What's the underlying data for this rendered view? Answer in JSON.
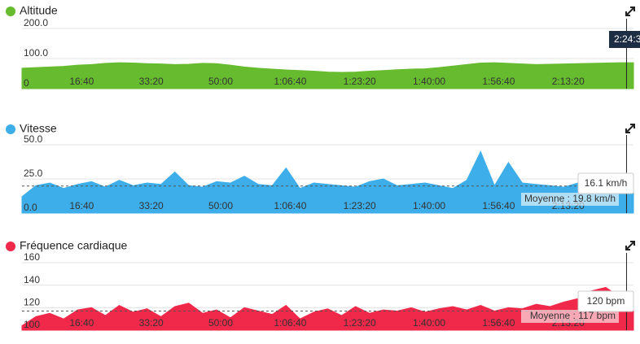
{
  "chart_data": [
    {
      "type": "area",
      "title": "Altitude",
      "color": "#66bb2e",
      "x": [
        0,
        200,
        400,
        600,
        800,
        1000,
        1200,
        1400,
        1600,
        1800,
        2000,
        2200,
        2400,
        2600,
        2800,
        3000,
        3200,
        3400,
        3600,
        3800,
        4000,
        4200,
        4400,
        4600,
        4800,
        5000,
        5200,
        5400,
        5600,
        5800,
        6000,
        6200,
        6400,
        6600,
        6800,
        7000,
        7200,
        7400,
        7600,
        7800,
        8000,
        8200,
        8400,
        8600,
        8800
      ],
      "values": [
        68,
        70,
        72,
        74,
        78,
        80,
        84,
        86,
        85,
        83,
        82,
        80,
        81,
        84,
        83,
        78,
        72,
        68,
        65,
        62,
        60,
        58,
        55,
        54,
        55,
        58,
        60,
        63,
        65,
        66,
        70,
        75,
        80,
        85,
        86,
        84,
        82,
        80,
        81,
        82,
        83,
        84,
        85,
        86,
        86
      ],
      "xlim": [
        0,
        8800
      ],
      "xticks": [
        {
          "value": 1000,
          "label": "16:40"
        },
        {
          "value": 2000,
          "label": "33:20"
        },
        {
          "value": 3000,
          "label": "50:00"
        },
        {
          "value": 4000,
          "label": "1:06:40"
        },
        {
          "value": 5000,
          "label": "1:23:20"
        },
        {
          "value": 6000,
          "label": "1:40:00"
        },
        {
          "value": 7000,
          "label": "1:56:40"
        },
        {
          "value": 8000,
          "label": "2:13:20"
        }
      ],
      "ylim": [
        0,
        200
      ],
      "yticks": [
        0,
        {
          "value": 100,
          "label": "100.0"
        },
        {
          "value": 200,
          "label": "200.0"
        }
      ],
      "grid": true,
      "cursor": {
        "value": 8700,
        "label": "2:24:3"
      }
    },
    {
      "type": "area",
      "title": "Vitesse",
      "color": "#3daee9",
      "x": [
        0,
        200,
        400,
        600,
        800,
        1000,
        1200,
        1400,
        1600,
        1800,
        2000,
        2200,
        2400,
        2600,
        2800,
        3000,
        3200,
        3400,
        3600,
        3800,
        4000,
        4200,
        4400,
        4600,
        4800,
        5000,
        5200,
        5400,
        5600,
        5800,
        6000,
        6200,
        6400,
        6600,
        6800,
        7000,
        7200,
        7400,
        7600,
        7800,
        8000,
        8200,
        8400,
        8600,
        8800
      ],
      "values": [
        12,
        20,
        22,
        18,
        21,
        23,
        19,
        24,
        20,
        22,
        21,
        30,
        20,
        19,
        23,
        22,
        27,
        21,
        20,
        33,
        18,
        22,
        21,
        20,
        19,
        23,
        25,
        20,
        21,
        22,
        20,
        18,
        24,
        45,
        20,
        37,
        22,
        21,
        20,
        19,
        22,
        21,
        20,
        18,
        17
      ],
      "xlim": [
        0,
        8800
      ],
      "xticks": [
        {
          "value": 1000,
          "label": "16:40"
        },
        {
          "value": 2000,
          "label": "33:20"
        },
        {
          "value": 3000,
          "label": "50:00"
        },
        {
          "value": 4000,
          "label": "1:06:40"
        },
        {
          "value": 5000,
          "label": "1:23:20"
        },
        {
          "value": 6000,
          "label": "1:40:00"
        },
        {
          "value": 7000,
          "label": "1:56:40"
        },
        {
          "value": 8000,
          "label": "2:13:20"
        }
      ],
      "ylim": [
        0,
        50
      ],
      "yticks": [
        {
          "value": 0,
          "label": "0.0"
        },
        {
          "value": 25,
          "label": "25.0"
        },
        {
          "value": 50,
          "label": "50.0"
        }
      ],
      "grid": true,
      "average": {
        "value": 19.8,
        "label": "Moyenne : 19.8 km/h"
      },
      "readout": {
        "value": 16.1,
        "label": "16.1 km/h"
      }
    },
    {
      "type": "area",
      "title": "Fréquence cardiaque",
      "color": "#f0284a",
      "x": [
        0,
        200,
        400,
        600,
        800,
        1000,
        1200,
        1400,
        1600,
        1800,
        2000,
        2200,
        2400,
        2600,
        2800,
        3000,
        3200,
        3400,
        3600,
        3800,
        4000,
        4200,
        4400,
        4600,
        4800,
        5000,
        5200,
        5400,
        5600,
        5800,
        6000,
        6200,
        6400,
        6600,
        6800,
        7000,
        7200,
        7400,
        7600,
        7800,
        8000,
        8200,
        8400,
        8600,
        8800
      ],
      "values": [
        104,
        112,
        115,
        110,
        118,
        120,
        113,
        122,
        116,
        119,
        112,
        121,
        124,
        115,
        118,
        111,
        120,
        117,
        114,
        122,
        110,
        116,
        119,
        113,
        121,
        115,
        118,
        117,
        120,
        116,
        119,
        121,
        118,
        122,
        117,
        120,
        119,
        123,
        121,
        125,
        128,
        135,
        138,
        130,
        120
      ],
      "xlim": [
        0,
        8800
      ],
      "xticks": [
        {
          "value": 1000,
          "label": "16:40"
        },
        {
          "value": 2000,
          "label": "33:20"
        },
        {
          "value": 3000,
          "label": "50:00"
        },
        {
          "value": 4000,
          "label": "1:06:40"
        },
        {
          "value": 5000,
          "label": "1:23:20"
        },
        {
          "value": 6000,
          "label": "1:40:00"
        },
        {
          "value": 7000,
          "label": "1:56:40"
        },
        {
          "value": 8000,
          "label": "2:13:20"
        }
      ],
      "ylim": [
        100,
        160
      ],
      "yticks": [
        100,
        120,
        140,
        160
      ],
      "grid": true,
      "average": {
        "value": 117,
        "label": "Moyenne : 117 bpm"
      },
      "readout": {
        "value": 120,
        "label": "120 bpm"
      }
    }
  ]
}
